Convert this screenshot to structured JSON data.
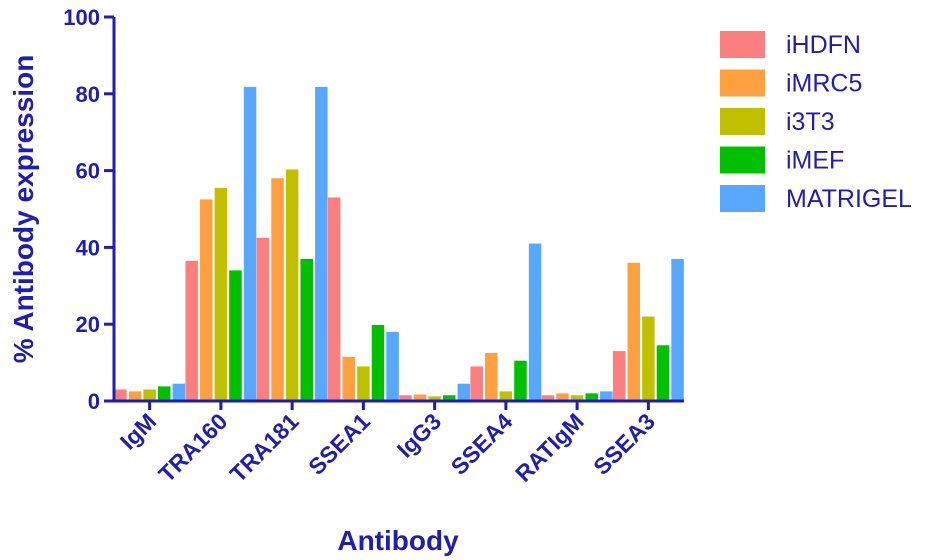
{
  "chart_data": {
    "type": "bar",
    "title": "",
    "xlabel": "Antibody",
    "ylabel": "% Antibody expression",
    "ylim": [
      0,
      100
    ],
    "yticks": [
      0,
      20,
      40,
      60,
      80,
      100
    ],
    "categories": [
      "IgM",
      "TRA160",
      "TRA181",
      "SSEA1",
      "IgG3",
      "SSEA4",
      "RATIgM",
      "SSEA3"
    ],
    "series": [
      {
        "name": "iHDFN",
        "color": "#fb7f7f",
        "values": [
          3.0,
          36.5,
          42.5,
          53.0,
          1.5,
          9.0,
          1.5,
          13.0
        ]
      },
      {
        "name": "iMRC5",
        "color": "#ffa040",
        "values": [
          2.5,
          52.5,
          58.0,
          11.5,
          1.7,
          12.5,
          2.0,
          36.0
        ]
      },
      {
        "name": "i3T3",
        "color": "#c0c000",
        "values": [
          3.0,
          55.5,
          60.3,
          9.0,
          1.2,
          2.5,
          1.5,
          22.0
        ]
      },
      {
        "name": "iMEF",
        "color": "#00c000",
        "values": [
          3.8,
          34.0,
          37.0,
          19.8,
          1.5,
          10.5,
          2.0,
          14.5
        ]
      },
      {
        "name": "MATRIGEL",
        "color": "#58a8ff",
        "values": [
          4.5,
          81.8,
          81.8,
          18.0,
          4.5,
          41.0,
          2.5,
          37.0
        ]
      }
    ],
    "grid": false,
    "legend_position": "right"
  }
}
